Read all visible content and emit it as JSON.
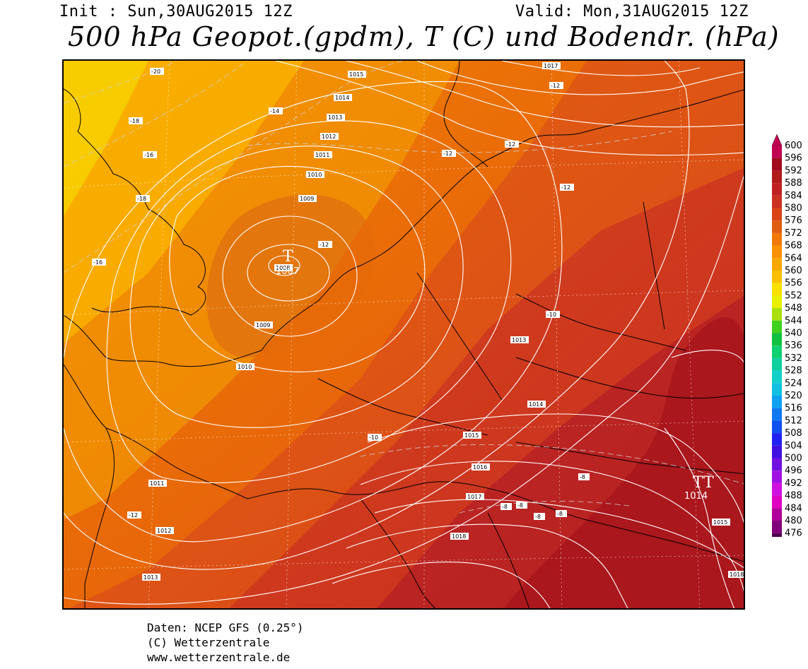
{
  "header": {
    "init": "Init : Sun,30AUG2015 12Z",
    "valid": "Valid: Mon,31AUG2015 12Z",
    "title": "500 hPa Geopot.(gpdm), T (C) und Bodendr. (hPa)"
  },
  "credits": {
    "line1": "Daten: NCEP GFS (0.25°)",
    "line2": "(C) Wetterzentrale",
    "line3": "www.wetterzentrale.de"
  },
  "legend": {
    "levels": [
      "600",
      "596",
      "592",
      "588",
      "584",
      "580",
      "576",
      "572",
      "568",
      "564",
      "560",
      "556",
      "552",
      "548",
      "544",
      "540",
      "536",
      "532",
      "528",
      "524",
      "520",
      "516",
      "512",
      "508",
      "504",
      "500",
      "496",
      "492",
      "488",
      "484",
      "480",
      "476"
    ],
    "colors": [
      "#c00050",
      "#a00a1a",
      "#b01a1a",
      "#c02020",
      "#cc3020",
      "#d84418",
      "#e05c10",
      "#f07808",
      "#f89000",
      "#f8a800",
      "#f8c000",
      "#f8e000",
      "#e8f000",
      "#a8e010",
      "#40d020",
      "#10c040",
      "#10d070",
      "#10d0a0",
      "#10d0c8",
      "#10c0e0",
      "#10a0f0",
      "#1078f0",
      "#1050f0",
      "#2020f0",
      "#4010e0",
      "#7010e0",
      "#a010e0",
      "#d010e0",
      "#e000c0",
      "#b0009a",
      "#80007a",
      "#500050"
    ]
  },
  "map_labels": {
    "low_center": {
      "symbol": "T",
      "value": "1007"
    },
    "high_center": {
      "symbol": "TT",
      "value": "1014"
    },
    "isobars": [
      "1017",
      "1016",
      "1015",
      "1014",
      "1013",
      "1012",
      "1011",
      "1010",
      "1009",
      "1008",
      "1009",
      "1010",
      "1011",
      "1012",
      "1013",
      "1013",
      "1014",
      "1015",
      "1016",
      "1017",
      "1018",
      "1015",
      "1016",
      "1018",
      "1017"
    ],
    "isotherms": [
      "-20",
      "-18",
      "-16",
      "-14",
      "-12",
      "-12",
      "-12",
      "-12",
      "-12",
      "-16",
      "-18",
      "-10",
      "-10",
      "-8",
      "-8",
      "-8",
      "-8",
      "-8",
      "-12"
    ]
  }
}
